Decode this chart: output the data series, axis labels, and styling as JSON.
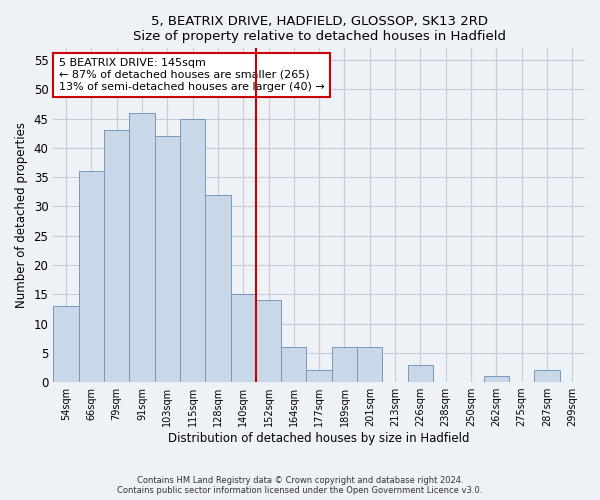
{
  "title": "5, BEATRIX DRIVE, HADFIELD, GLOSSOP, SK13 2RD",
  "subtitle": "Size of property relative to detached houses in Hadfield",
  "xlabel": "Distribution of detached houses by size in Hadfield",
  "ylabel": "Number of detached properties",
  "bar_labels": [
    "54sqm",
    "66sqm",
    "79sqm",
    "91sqm",
    "103sqm",
    "115sqm",
    "128sqm",
    "140sqm",
    "152sqm",
    "164sqm",
    "177sqm",
    "189sqm",
    "201sqm",
    "213sqm",
    "226sqm",
    "238sqm",
    "250sqm",
    "262sqm",
    "275sqm",
    "287sqm",
    "299sqm"
  ],
  "bar_values": [
    13,
    36,
    43,
    46,
    42,
    45,
    32,
    15,
    14,
    6,
    2,
    6,
    6,
    0,
    3,
    0,
    0,
    1,
    0,
    2,
    0
  ],
  "bar_color": "#c8d8e8",
  "bar_edgecolor": "#7799bb",
  "vline_x_index": 7.5,
  "vline_color": "#cc0000",
  "annotation_text": "5 BEATRIX DRIVE: 145sqm\n← 87% of detached houses are smaller (265)\n13% of semi-detached houses are larger (40) →",
  "annotation_box_facecolor": "#ffffff",
  "annotation_box_edgecolor": "#cc0000",
  "ylim": [
    0,
    57
  ],
  "yticks": [
    0,
    5,
    10,
    15,
    20,
    25,
    30,
    35,
    40,
    45,
    50,
    55
  ],
  "footer_line1": "Contains HM Land Registry data © Crown copyright and database right 2024.",
  "footer_line2": "Contains public sector information licensed under the Open Government Licence v3.0.",
  "bg_color": "#eef2f7",
  "plot_bg_color": "#eef2f7",
  "grid_color": "#c8ccd8"
}
